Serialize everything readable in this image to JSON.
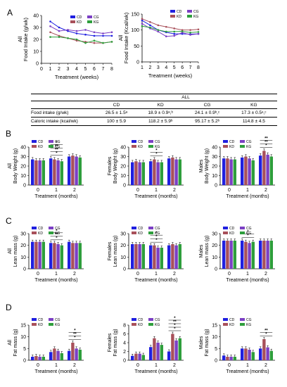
{
  "colors": {
    "CD": "#1f1fe0",
    "KD": "#a8505a",
    "CG": "#7b3fc4",
    "KG": "#2e9e3c"
  },
  "panels": {
    "A": "A",
    "B": "B",
    "C": "C",
    "D": "D"
  },
  "legend": {
    "CD": "CD",
    "KD": "KD",
    "CG": "CG",
    "KG": "KG"
  },
  "table": {
    "header": "ALL",
    "columns": [
      "CD",
      "KD",
      "CG",
      "KG"
    ],
    "rows": [
      {
        "label": "Food intake (g/wk)",
        "values": [
          "26.5 ± 1.5ᵃ",
          "18.9 ± 0.9ᵃ,ᵇ",
          "24.1 ± 0.9ᵇ,ᶜ",
          "17.3 ± 0.5ᵃ,ᶜ"
        ]
      },
      {
        "label": "Caloric intake (kcal/wk)",
        "values": [
          "100 ± 5.9",
          "118.2 ± 5.9ᵇ",
          "95.17 ± 5.2ᵇ",
          "114.8 ± 4.5"
        ]
      }
    ]
  },
  "chart_data": [
    {
      "type": "line",
      "panel": "A",
      "group": "All",
      "ylabel": "Food Intake (g/wk)",
      "xlabel": "Treatment (weeks)",
      "x": [
        1,
        2,
        3,
        4,
        5,
        6,
        7,
        8
      ],
      "xlim": [
        0,
        8
      ],
      "ylim": [
        0,
        40
      ],
      "yticks": [
        0,
        10,
        20,
        30,
        40
      ],
      "series": [
        {
          "name": "CD",
          "values": [
            35,
            30,
            27,
            25,
            24,
            23,
            23,
            23
          ]
        },
        {
          "name": "KD",
          "values": [
            26,
            23,
            21,
            19,
            18,
            17,
            17,
            18
          ]
        },
        {
          "name": "CG",
          "values": [
            31,
            27,
            28,
            27,
            28,
            26,
            25,
            26
          ]
        },
        {
          "name": "KG",
          "values": [
            22,
            22,
            21,
            20,
            17,
            19,
            17,
            18
          ]
        }
      ]
    },
    {
      "type": "line",
      "panel": "A",
      "group": "All",
      "ylabel": "Food Intake (Kcal/wk)",
      "xlabel": "Treatment (weeks)",
      "x": [
        1,
        2,
        3,
        4,
        5,
        6,
        7,
        8
      ],
      "xlim": [
        1,
        8
      ],
      "ylim": [
        0,
        150
      ],
      "yticks": [
        0,
        50,
        100,
        150
      ],
      "series": [
        {
          "name": "CD",
          "values": [
            130,
            115,
            100,
            93,
            88,
            88,
            87,
            88
          ]
        },
        {
          "name": "KD",
          "values": [
            135,
            125,
            115,
            110,
            105,
            100,
            100,
            102
          ]
        },
        {
          "name": "CG",
          "values": [
            120,
            105,
            95,
            80,
            82,
            92,
            85,
            88
          ]
        },
        {
          "name": "KG",
          "values": [
            112,
            108,
            100,
            95,
            95,
            96,
            92,
            94
          ]
        }
      ]
    },
    {
      "type": "bar",
      "panel": "B",
      "group": "All",
      "ylabel": "Body Weight (g)",
      "xlabel": "Treatment  (months)",
      "categories": [
        "0",
        "1",
        "2"
      ],
      "ylim": [
        0,
        40
      ],
      "yticks": [
        0,
        10,
        20,
        30,
        40
      ],
      "sig": [
        "*",
        "**",
        "**",
        "*"
      ],
      "series": [
        {
          "name": "CD",
          "values": [
            27,
            28,
            30
          ]
        },
        {
          "name": "KD",
          "values": [
            26,
            27,
            31
          ]
        },
        {
          "name": "CG",
          "values": [
            26,
            26,
            30
          ]
        },
        {
          "name": "KG",
          "values": [
            26,
            25,
            29
          ]
        }
      ]
    },
    {
      "type": "bar",
      "panel": "B",
      "group": "Females",
      "ylabel": "Body Weight (g)",
      "xlabel": "Treatment  (months)",
      "categories": [
        "0",
        "1",
        "2"
      ],
      "ylim": [
        0,
        40
      ],
      "yticks": [
        0,
        10,
        20,
        30,
        40
      ],
      "sig": [
        "*",
        "*"
      ],
      "series": [
        {
          "name": "CD",
          "values": [
            24,
            25,
            28
          ]
        },
        {
          "name": "KD",
          "values": [
            25,
            27,
            29
          ]
        },
        {
          "name": "CG",
          "values": [
            24,
            24,
            27
          ]
        },
        {
          "name": "KG",
          "values": [
            24,
            24,
            27
          ]
        }
      ]
    },
    {
      "type": "bar",
      "panel": "B",
      "group": "Males",
      "ylabel": "Body Weight (g)",
      "xlabel": "Treatment  (months)",
      "categories": [
        "0",
        "1",
        "2"
      ],
      "ylim": [
        0,
        40
      ],
      "yticks": [
        0,
        10,
        20,
        30,
        40
      ],
      "sig": [
        "*",
        "**",
        "**"
      ],
      "series": [
        {
          "name": "CD",
          "values": [
            28,
            29,
            31
          ]
        },
        {
          "name": "KD",
          "values": [
            28,
            30,
            36
          ]
        },
        {
          "name": "CG",
          "values": [
            27,
            28,
            32
          ]
        },
        {
          "name": "KG",
          "values": [
            27,
            26,
            30
          ]
        }
      ]
    },
    {
      "type": "bar",
      "panel": "C",
      "group": "All",
      "ylabel": "Lean mass (g)",
      "xlabel": "Treatment  (months)",
      "categories": [
        "0",
        "1",
        "2"
      ],
      "ylim": [
        0,
        30
      ],
      "yticks": [
        0,
        10,
        20,
        30
      ],
      "sig": [
        "*",
        "**",
        "*"
      ],
      "series": [
        {
          "name": "CD",
          "values": [
            23,
            22,
            23
          ]
        },
        {
          "name": "KD",
          "values": [
            23,
            22,
            22
          ]
        },
        {
          "name": "CG",
          "values": [
            23,
            21,
            22
          ]
        },
        {
          "name": "KG",
          "values": [
            23,
            20,
            22
          ]
        }
      ]
    },
    {
      "type": "bar",
      "panel": "C",
      "group": "Females",
      "ylabel": "Lean mass (g)",
      "xlabel": "Treatment  (months)",
      "categories": [
        "0",
        "1",
        "2"
      ],
      "ylim": [
        0,
        30
      ],
      "yticks": [
        0,
        10,
        20,
        30
      ],
      "sig": [
        "*",
        "*",
        "*"
      ],
      "series": [
        {
          "name": "CD",
          "values": [
            21,
            20,
            20
          ]
        },
        {
          "name": "KD",
          "values": [
            21,
            20,
            21
          ]
        },
        {
          "name": "CG",
          "values": [
            21,
            18,
            20
          ]
        },
        {
          "name": "KG",
          "values": [
            21,
            18,
            21
          ]
        }
      ]
    },
    {
      "type": "bar",
      "panel": "C",
      "group": "Males",
      "ylabel": "Lean mass (g)",
      "xlabel": "Treatment  (months)",
      "categories": [
        "0",
        "1",
        "2"
      ],
      "ylim": [
        0,
        30
      ],
      "yticks": [
        0,
        10,
        20,
        30
      ],
      "sig": [
        "*",
        "*"
      ],
      "series": [
        {
          "name": "CD",
          "values": [
            24,
            24,
            24
          ]
        },
        {
          "name": "KD",
          "values": [
            24,
            23,
            24
          ]
        },
        {
          "name": "CG",
          "values": [
            24,
            22,
            24
          ]
        },
        {
          "name": "KG",
          "values": [
            24,
            23,
            24
          ]
        }
      ]
    },
    {
      "type": "bar",
      "panel": "D",
      "group": "All",
      "ylabel": "Fat mass (g)",
      "xlabel": "Treatment (months)",
      "categories": [
        "0",
        "1",
        "2"
      ],
      "ylim": [
        0,
        15
      ],
      "yticks": [
        0,
        5,
        10,
        15
      ],
      "sig": [
        "*",
        "**",
        "*"
      ],
      "series": [
        {
          "name": "CD",
          "values": [
            1.5,
            3.5,
            4
          ]
        },
        {
          "name": "KD",
          "values": [
            1.8,
            5,
            7.5
          ]
        },
        {
          "name": "CG",
          "values": [
            1.5,
            4,
            5
          ]
        },
        {
          "name": "KG",
          "values": [
            1.5,
            3,
            4.5
          ]
        }
      ]
    },
    {
      "type": "bar",
      "panel": "D",
      "group": "Females",
      "ylabel": "Fat mass (g)",
      "xlabel": "Treatment (months)",
      "categories": [
        "0",
        "1",
        "2"
      ],
      "ylim": [
        0,
        8
      ],
      "yticks": [
        0,
        2,
        4,
        6,
        8
      ],
      "sig": [
        "*",
        "*",
        "**",
        "*"
      ],
      "series": [
        {
          "name": "CD",
          "values": [
            1,
            3,
            2
          ]
        },
        {
          "name": "KD",
          "values": [
            1.5,
            5,
            6
          ]
        },
        {
          "name": "CG",
          "values": [
            1.5,
            4,
            4.5
          ]
        },
        {
          "name": "KG",
          "values": [
            1.2,
            3.5,
            5
          ]
        }
      ]
    },
    {
      "type": "bar",
      "panel": "D",
      "group": "Males",
      "ylabel": "Fat mass (g)",
      "xlabel": "Treatment (months)",
      "categories": [
        "0",
        "1",
        "2"
      ],
      "ylim": [
        0,
        15
      ],
      "yticks": [
        0,
        5,
        10,
        15
      ],
      "sig": [
        "*",
        "**"
      ],
      "series": [
        {
          "name": "CD",
          "values": [
            2,
            5,
            5
          ]
        },
        {
          "name": "KD",
          "values": [
            1.5,
            5,
            9
          ]
        },
        {
          "name": "CG",
          "values": [
            1.5,
            4.5,
            5.5
          ]
        },
        {
          "name": "KG",
          "values": [
            1.5,
            3.5,
            4
          ]
        }
      ]
    }
  ]
}
